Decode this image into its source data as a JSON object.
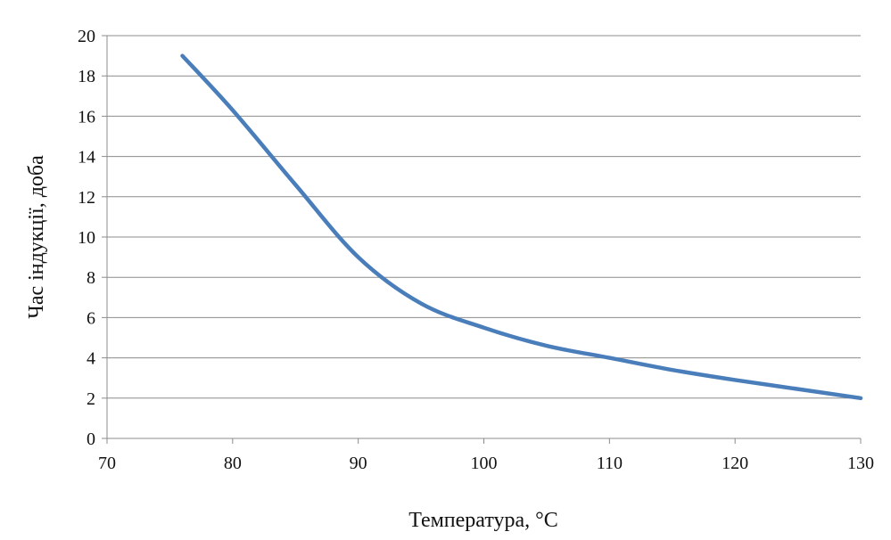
{
  "chart_data": {
    "type": "line",
    "title": "",
    "xlabel": "Температура, °C",
    "ylabel": "Час індукції, доба",
    "xlim": [
      70,
      130
    ],
    "ylim": [
      0,
      20
    ],
    "x_ticks": [
      "70",
      "80",
      "90",
      "100",
      "110",
      "120",
      "130"
    ],
    "y_ticks": [
      "0",
      "2",
      "4",
      "6",
      "8",
      "10",
      "12",
      "14",
      "16",
      "18",
      "20"
    ],
    "grid": true,
    "legend": "none",
    "series": [
      {
        "color": "#4a7ebb",
        "x": [
          76,
          80,
          85,
          90,
          95,
          100,
          105,
          110,
          115,
          120,
          125,
          130
        ],
        "y": [
          19.0,
          16.3,
          12.6,
          9.0,
          6.7,
          5.5,
          4.6,
          4.0,
          3.4,
          2.9,
          2.45,
          2.0
        ]
      }
    ]
  }
}
